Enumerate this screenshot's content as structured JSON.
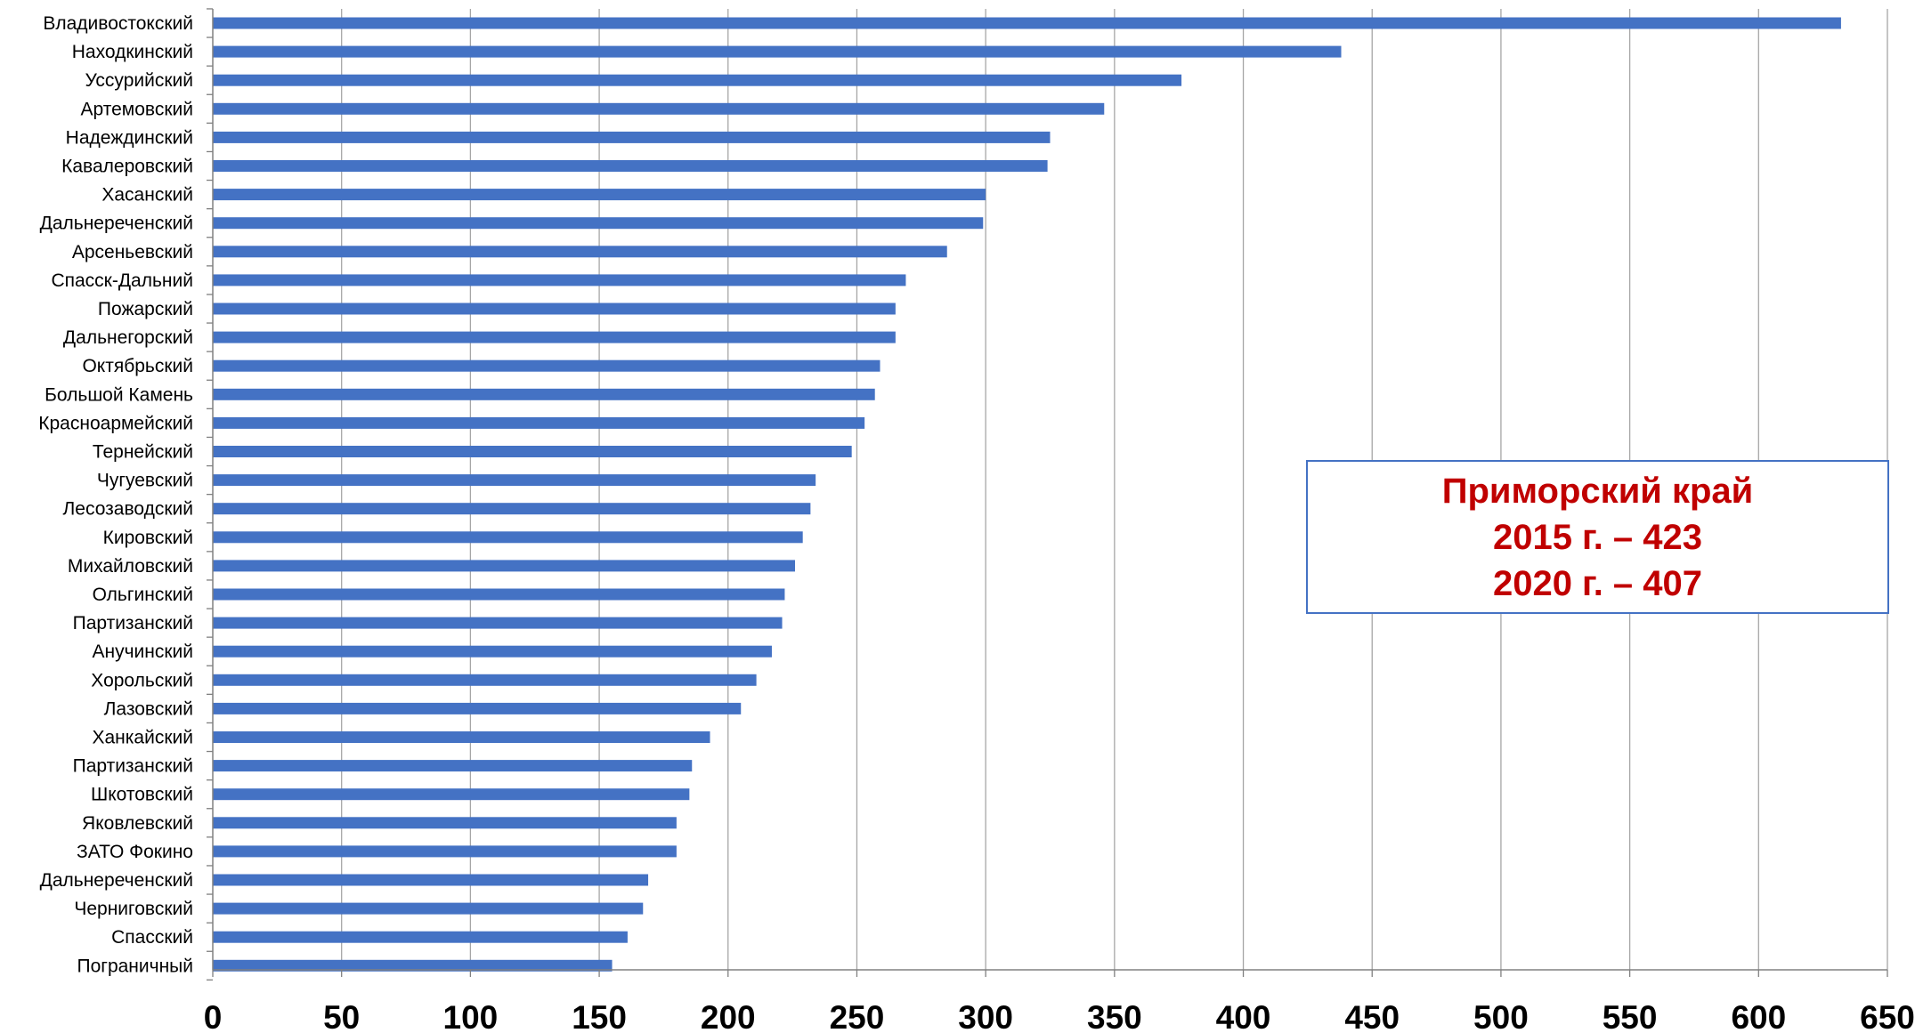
{
  "colors": {
    "bar": "#4472c4",
    "grid": "#a6a6a6",
    "axis": "#808080",
    "annotation_text": "#c00000",
    "annotation_border": "#4472c4"
  },
  "annotation": {
    "line1": "Приморский край",
    "line2": "2015 г. – 423",
    "line3": "2020 г. – 407"
  },
  "chart_data": {
    "type": "bar",
    "orientation": "horizontal",
    "title": "",
    "xlabel": "",
    "ylabel": "",
    "xlim": [
      0,
      650
    ],
    "ticks": [
      0,
      50,
      100,
      150,
      200,
      250,
      300,
      350,
      400,
      450,
      500,
      550,
      600,
      650
    ],
    "grid": "vertical",
    "legend": "none",
    "categories": [
      "Владивостокский",
      "Находкинский",
      "Уссурийский",
      "Артемовский",
      "Надеждинский",
      "Кавалеровский",
      "Хасанский",
      "Дальнереченский",
      "Арсеньевский",
      "Спасск-Дальний",
      "Пожарский",
      "Дальнегорский",
      "Октябрьский",
      "Большой Камень",
      "Красноармейский",
      "Тернейский",
      "Чугуевский",
      "Лесозаводский",
      "Кировский",
      "Михайловский",
      "Ольгинский",
      "Партизанский",
      "Анучинский",
      "Хорольский",
      "Лазовский",
      "Ханкайский",
      "Партизанский",
      "Шкотовский",
      "Яковлевский",
      "ЗАТО Фокино",
      "Дальнереченский",
      "Черниговский",
      "Спасский",
      "Пограничный"
    ],
    "values": [
      632,
      438,
      376,
      346,
      325,
      324,
      300,
      299,
      285,
      269,
      265,
      265,
      259,
      257,
      253,
      248,
      234,
      232,
      229,
      226,
      222,
      221,
      217,
      211,
      205,
      193,
      186,
      185,
      180,
      180,
      169,
      167,
      161,
      155
    ]
  }
}
